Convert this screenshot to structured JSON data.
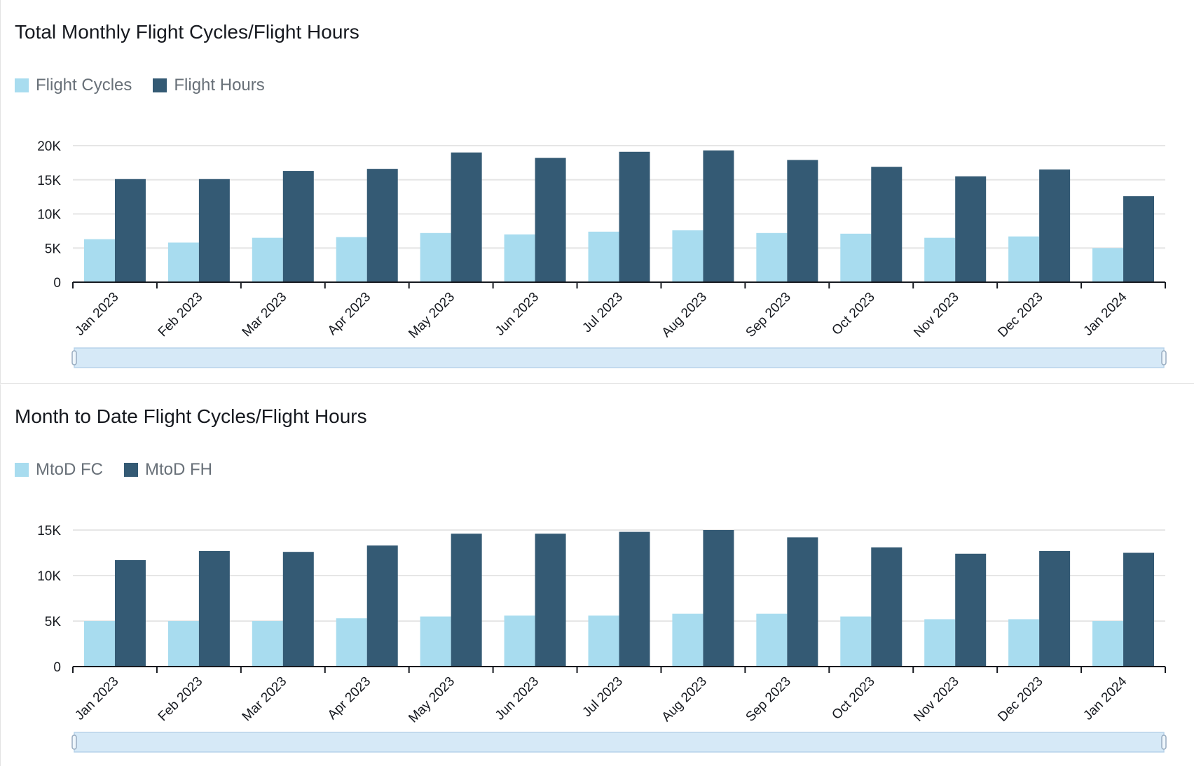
{
  "colors": {
    "light": "#a8dcef",
    "dark": "#345a74",
    "grid": "#e6e6e6",
    "axis": "#16191f",
    "scroll": "#d6e9f7",
    "scroll_border": "#b7d3ea"
  },
  "chart_data": [
    {
      "type": "bar",
      "title": "Total Monthly Flight Cycles/Flight Hours",
      "legend_position": "top-left",
      "categories": [
        "Jan 2023",
        "Feb 2023",
        "Mar 2023",
        "Apr 2023",
        "May 2023",
        "Jun 2023",
        "Jul 2023",
        "Aug 2023",
        "Sep 2023",
        "Oct 2023",
        "Nov 2023",
        "Dec 2023",
        "Jan 2024"
      ],
      "yticks": [
        "0",
        "5K",
        "10K",
        "15K",
        "20K"
      ],
      "ylim": [
        0,
        20000
      ],
      "series": [
        {
          "name": "Flight Cycles",
          "values": [
            6300,
            5800,
            6500,
            6600,
            7200,
            7000,
            7400,
            7600,
            7200,
            7100,
            6500,
            6700,
            5000
          ]
        },
        {
          "name": "Flight Hours",
          "values": [
            15100,
            15100,
            16300,
            16600,
            19000,
            18200,
            19100,
            19300,
            17900,
            16900,
            15500,
            16500,
            12600
          ]
        }
      ]
    },
    {
      "type": "bar",
      "title": "Month to Date Flight Cycles/Flight Hours",
      "legend_position": "top-left",
      "categories": [
        "Jan 2023",
        "Feb 2023",
        "Mar 2023",
        "Apr 2023",
        "May 2023",
        "Jun 2023",
        "Jul 2023",
        "Aug 2023",
        "Sep 2023",
        "Oct 2023",
        "Nov 2023",
        "Dec 2023",
        "Jan 2024"
      ],
      "yticks": [
        "0",
        "5K",
        "10K",
        "15K"
      ],
      "ylim": [
        0,
        15000
      ],
      "series": [
        {
          "name": "MtoD FC",
          "values": [
            5000,
            5000,
            5000,
            5300,
            5500,
            5600,
            5600,
            5800,
            5800,
            5500,
            5200,
            5200,
            5000
          ]
        },
        {
          "name": "MtoD FH",
          "values": [
            11700,
            12700,
            12600,
            13300,
            14600,
            14600,
            14800,
            15000,
            14200,
            13100,
            12400,
            12700,
            12500
          ]
        }
      ]
    }
  ]
}
